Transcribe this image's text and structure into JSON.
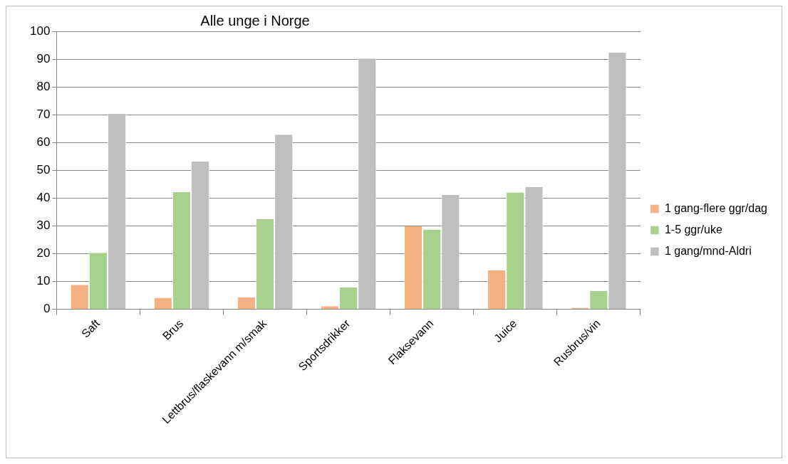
{
  "chart_data": {
    "type": "bar",
    "title": "Alle unge i Norge",
    "categories": [
      "Saft",
      "Brus",
      "Lettbrus/flaskevann m/smak",
      "Sportsdrikker",
      "Flaksevann",
      "Juice",
      "Rusbrus/vin"
    ],
    "series": [
      {
        "name": "1 gang-flere ggr/dag",
        "color": "#f4b183",
        "values": [
          8.8,
          4.1,
          4.3,
          1.1,
          29.9,
          14.0,
          0.5
        ]
      },
      {
        "name": "1-5 ggr/uke",
        "color": "#a9d18e",
        "values": [
          20.3,
          42.2,
          32.4,
          7.9,
          28.6,
          42.0,
          6.6
        ]
      },
      {
        "name": "1 gang/mnd-Aldri",
        "color": "#bfbfbf",
        "values": [
          70.3,
          53.2,
          62.8,
          90.2,
          41.2,
          44.0,
          92.3
        ]
      }
    ],
    "ylim": [
      0,
      100
    ],
    "yticks": [
      0,
      10,
      20,
      30,
      40,
      50,
      60,
      70,
      80,
      90,
      100
    ],
    "grid": "y",
    "legend": "right"
  }
}
